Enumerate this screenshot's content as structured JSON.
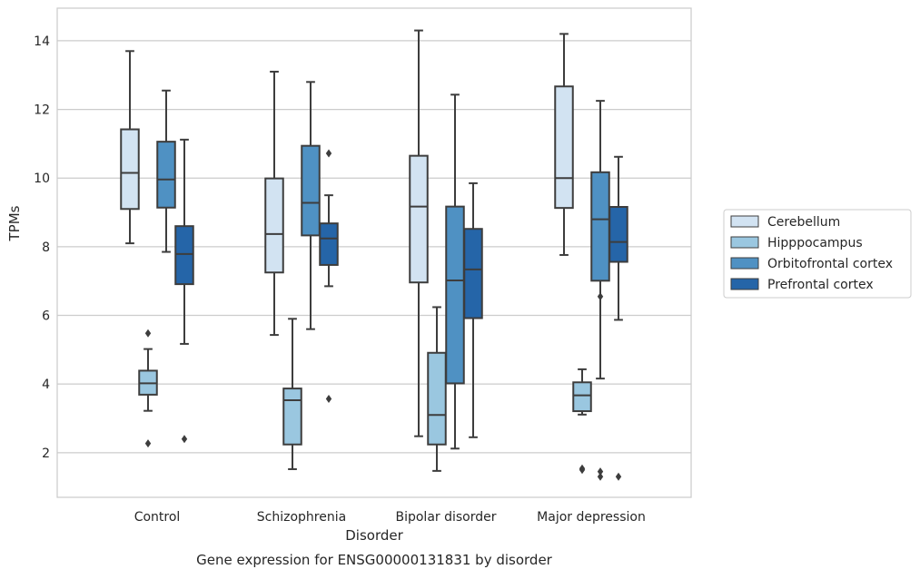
{
  "chart_data": {
    "type": "box",
    "title": "",
    "caption": "Gene expression for ENSG00000131831 by disorder",
    "xlabel": "Disorder",
    "ylabel": "TPMs",
    "ylim": [
      0.7,
      14.95
    ],
    "yticks": [
      "2",
      "4",
      "6",
      "8",
      "10",
      "12",
      "14"
    ],
    "grid": "horizontal",
    "legend_position": "right",
    "categories": [
      "Control",
      "Schizophrenia",
      "Bipolar disorder",
      "Major depression"
    ],
    "series": [
      {
        "name": "Cerebellum",
        "color": "#d2e3f2",
        "boxes": [
          {
            "whisker_low": 8.1,
            "q1": 9.1,
            "median": 10.15,
            "q3": 11.42,
            "whisker_high": 13.7,
            "outliers": []
          },
          {
            "whisker_low": 5.43,
            "q1": 7.25,
            "median": 8.37,
            "q3": 9.99,
            "whisker_high": 13.1,
            "outliers": []
          },
          {
            "whisker_low": 2.48,
            "q1": 6.96,
            "median": 9.17,
            "q3": 10.65,
            "whisker_high": 14.3,
            "outliers": []
          },
          {
            "whisker_low": 7.76,
            "q1": 9.13,
            "median": 10.0,
            "q3": 12.67,
            "whisker_high": 14.2,
            "outliers": []
          }
        ]
      },
      {
        "name": "Hipppocampus",
        "color": "#9ac7e0",
        "boxes": [
          {
            "whisker_low": 3.22,
            "q1": 3.69,
            "median": 4.02,
            "q3": 4.39,
            "whisker_high": 5.02,
            "outliers": [
              5.48,
              2.27
            ]
          },
          {
            "whisker_low": 1.52,
            "q1": 2.24,
            "median": 3.53,
            "q3": 3.87,
            "whisker_high": 5.9,
            "outliers": []
          },
          {
            "whisker_low": 1.47,
            "q1": 2.24,
            "median": 3.1,
            "q3": 4.91,
            "whisker_high": 6.24,
            "outliers": []
          },
          {
            "whisker_low": 3.11,
            "q1": 3.21,
            "median": 3.67,
            "q3": 4.05,
            "whisker_high": 4.43,
            "outliers": [
              1.5,
              1.54
            ]
          }
        ]
      },
      {
        "name": "Orbitofrontal cortex",
        "color": "#4f91c3",
        "boxes": [
          {
            "whisker_low": 7.85,
            "q1": 9.14,
            "median": 9.96,
            "q3": 11.06,
            "whisker_high": 12.55,
            "outliers": []
          },
          {
            "whisker_low": 5.6,
            "q1": 8.33,
            "median": 9.28,
            "q3": 10.94,
            "whisker_high": 12.8,
            "outliers": []
          },
          {
            "whisker_low": 2.12,
            "q1": 4.02,
            "median": 7.02,
            "q3": 9.17,
            "whisker_high": 12.43,
            "outliers": []
          },
          {
            "whisker_low": 4.16,
            "q1": 7.01,
            "median": 8.8,
            "q3": 10.17,
            "whisker_high": 12.25,
            "outliers": [
              6.55,
              1.3,
              1.45
            ]
          }
        ]
      },
      {
        "name": "Prefrontal cortex",
        "color": "#2565a8",
        "boxes": [
          {
            "whisker_low": 5.17,
            "q1": 6.91,
            "median": 7.79,
            "q3": 8.6,
            "whisker_high": 11.12,
            "outliers": [
              2.4
            ]
          },
          {
            "whisker_low": 6.85,
            "q1": 7.47,
            "median": 8.24,
            "q3": 8.68,
            "whisker_high": 9.5,
            "outliers": [
              10.72,
              3.57
            ]
          },
          {
            "whisker_low": 2.45,
            "q1": 5.92,
            "median": 7.34,
            "q3": 8.52,
            "whisker_high": 9.85,
            "outliers": []
          },
          {
            "whisker_low": 5.87,
            "q1": 7.56,
            "median": 8.14,
            "q3": 9.16,
            "whisker_high": 10.62,
            "outliers": [
              1.3
            ]
          }
        ]
      }
    ]
  }
}
